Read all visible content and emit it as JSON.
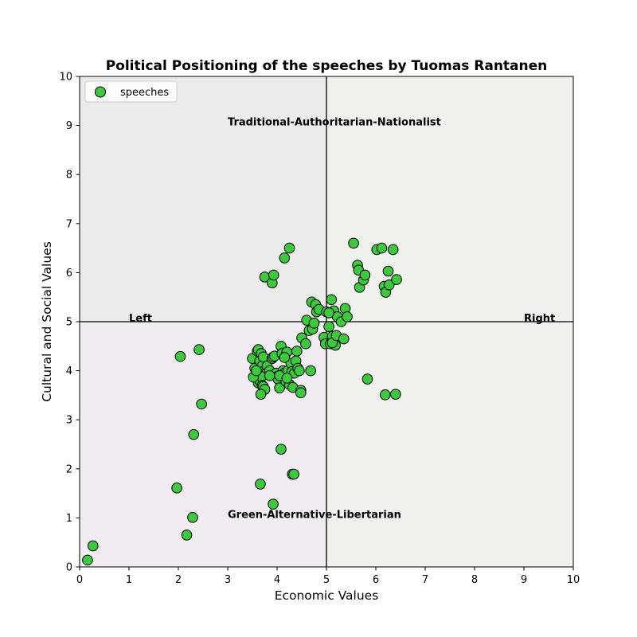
{
  "chart_data": {
    "type": "scatter",
    "title": "Political Positioning of the speeches by Tuomas Rantanen",
    "xlabel": "Economic Values",
    "ylabel": "Cultural and Social Values",
    "xlim": [
      0,
      10
    ],
    "ylim": [
      0,
      10
    ],
    "xticks": [
      "0",
      "1",
      "2",
      "3",
      "4",
      "5",
      "6",
      "7",
      "8",
      "9",
      "10"
    ],
    "yticks": [
      "0",
      "1",
      "2",
      "3",
      "4",
      "5",
      "6",
      "7",
      "8",
      "9",
      "10"
    ],
    "grid": false,
    "legend": {
      "position": "upper-left",
      "entries": [
        "speeches"
      ]
    },
    "reference_lines": {
      "x": 5,
      "y": 5
    },
    "quadrant_colors": {
      "top_left": "#ebebeb",
      "top_right": "#eff1ec",
      "bottom_left": "#f0ecf2",
      "bottom_right": "#f0f1ec"
    },
    "annotations": [
      {
        "text": "Traditional-Authoritarian-Nationalist",
        "x": 3.0,
        "y": 9.0
      },
      {
        "text": "Green-Alternative-Libertarian",
        "x": 3.0,
        "y": 1.0
      },
      {
        "text": "Left",
        "x": 1.0,
        "y": 5.0
      },
      {
        "text": "Right",
        "x": 9.0,
        "y": 5.0
      }
    ],
    "marker_color": "#3ec83e",
    "marker_edge_color": "#000000",
    "series": [
      {
        "name": "speeches",
        "points": [
          [
            0.16,
            0.14
          ],
          [
            0.27,
            0.43
          ],
          [
            1.97,
            1.61
          ],
          [
            2.17,
            0.65
          ],
          [
            2.29,
            1.01
          ],
          [
            2.31,
            2.7
          ],
          [
            2.47,
            3.32
          ],
          [
            2.04,
            4.29
          ],
          [
            2.42,
            4.43
          ],
          [
            3.66,
            1.69
          ],
          [
            3.92,
            1.28
          ],
          [
            4.08,
            2.4
          ],
          [
            4.31,
            1.89
          ],
          [
            4.34,
            1.89
          ],
          [
            3.5,
            4.25
          ],
          [
            3.55,
            4.05
          ],
          [
            3.6,
            4.4
          ],
          [
            3.62,
            4.43
          ],
          [
            3.65,
            4.2
          ],
          [
            3.68,
            4.35
          ],
          [
            3.7,
            4.1
          ],
          [
            3.72,
            4.28
          ],
          [
            3.75,
            4.0
          ],
          [
            3.78,
            3.95
          ],
          [
            3.58,
            3.9
          ],
          [
            3.6,
            3.85
          ],
          [
            3.62,
            3.75
          ],
          [
            3.65,
            3.8
          ],
          [
            3.68,
            3.88
          ],
          [
            3.7,
            3.7
          ],
          [
            3.72,
            3.68
          ],
          [
            3.75,
            3.62
          ],
          [
            3.67,
            3.52
          ],
          [
            3.52,
            3.87
          ],
          [
            3.8,
            4.1
          ],
          [
            3.85,
            4.0
          ],
          [
            3.9,
            4.25
          ],
          [
            3.92,
            4.28
          ],
          [
            3.95,
            4.3
          ],
          [
            3.98,
            3.95
          ],
          [
            4.0,
            3.88
          ],
          [
            4.02,
            3.83
          ],
          [
            4.05,
            3.65
          ],
          [
            4.08,
            4.5
          ],
          [
            4.1,
            4.35
          ],
          [
            4.12,
            4.0
          ],
          [
            4.15,
            3.95
          ],
          [
            4.18,
            3.78
          ],
          [
            4.2,
            4.38
          ],
          [
            4.22,
            4.0
          ],
          [
            4.25,
            3.72
          ],
          [
            4.28,
            4.15
          ],
          [
            4.3,
            3.98
          ],
          [
            4.32,
            3.66
          ],
          [
            4.35,
            3.95
          ],
          [
            4.38,
            4.2
          ],
          [
            4.4,
            4.4
          ],
          [
            4.42,
            4.05
          ],
          [
            4.45,
            4.0
          ],
          [
            4.48,
            3.6
          ],
          [
            4.48,
            3.55
          ],
          [
            4.15,
            4.27
          ],
          [
            3.85,
            3.9
          ],
          [
            3.58,
            4.0
          ],
          [
            4.05,
            3.9
          ],
          [
            4.2,
            3.85
          ],
          [
            4.5,
            4.67
          ],
          [
            4.58,
            4.55
          ],
          [
            4.6,
            5.03
          ],
          [
            4.65,
            4.82
          ],
          [
            4.68,
            4.0
          ],
          [
            4.72,
            4.85
          ],
          [
            4.7,
            5.4
          ],
          [
            4.75,
            4.97
          ],
          [
            4.78,
            5.35
          ],
          [
            4.8,
            5.2
          ],
          [
            4.85,
            5.25
          ],
          [
            4.95,
            4.68
          ],
          [
            4.98,
            4.55
          ],
          [
            5.0,
            5.2
          ],
          [
            5.05,
            4.9
          ],
          [
            5.08,
            4.55
          ],
          [
            5.1,
            5.45
          ],
          [
            5.12,
            4.7
          ],
          [
            5.15,
            5.22
          ],
          [
            5.18,
            4.52
          ],
          [
            5.12,
            4.57
          ],
          [
            5.2,
            4.72
          ],
          [
            5.22,
            5.1
          ],
          [
            5.3,
            5.0
          ],
          [
            5.35,
            4.65
          ],
          [
            5.38,
            5.27
          ],
          [
            5.42,
            5.1
          ],
          [
            5.05,
            5.18
          ],
          [
            3.75,
            5.91
          ],
          [
            3.9,
            5.79
          ],
          [
            3.93,
            5.95
          ],
          [
            4.15,
            6.3
          ],
          [
            4.25,
            6.5
          ],
          [
            5.55,
            6.6
          ],
          [
            5.63,
            6.15
          ],
          [
            5.65,
            6.05
          ],
          [
            5.67,
            5.7
          ],
          [
            5.75,
            5.85
          ],
          [
            5.78,
            5.95
          ],
          [
            6.02,
            6.47
          ],
          [
            6.12,
            6.5
          ],
          [
            6.17,
            5.72
          ],
          [
            6.2,
            5.6
          ],
          [
            6.25,
            6.03
          ],
          [
            6.27,
            5.75
          ],
          [
            6.35,
            6.47
          ],
          [
            6.42,
            5.86
          ],
          [
            5.83,
            3.83
          ],
          [
            6.19,
            3.51
          ],
          [
            6.4,
            3.52
          ]
        ]
      }
    ]
  }
}
